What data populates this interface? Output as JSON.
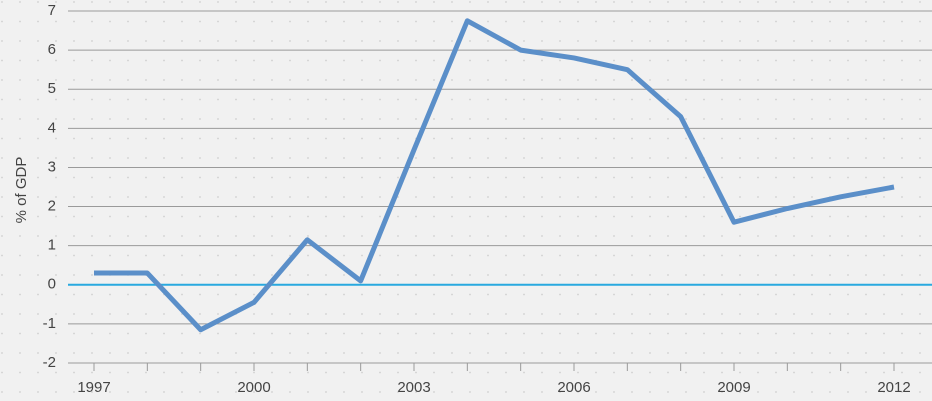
{
  "chart_data": {
    "type": "line",
    "y_label": "% of GDP",
    "x": [
      1997,
      1998,
      1999,
      2000,
      2001,
      2002,
      2003,
      2004,
      2005,
      2006,
      2007,
      2008,
      2009,
      2010,
      2011,
      2012
    ],
    "series": [
      {
        "color": "#5b8fc9",
        "values": [
          0.3,
          0.3,
          -1.15,
          -0.45,
          1.15,
          0.1,
          3.45,
          6.75,
          6.0,
          5.8,
          5.5,
          4.3,
          1.6,
          1.95,
          2.25,
          2.5
        ]
      }
    ],
    "xlim": [
      1997,
      2012
    ],
    "xticks": [
      1997,
      2000,
      2003,
      2006,
      2009,
      2012
    ],
    "ylim": [
      -2,
      7
    ],
    "yticks": [
      -2,
      -1,
      0,
      1,
      2,
      3,
      4,
      5,
      6,
      7
    ],
    "grid": true,
    "grid_color": "#9a9a9a",
    "zero_line_color": "#29a9df"
  }
}
